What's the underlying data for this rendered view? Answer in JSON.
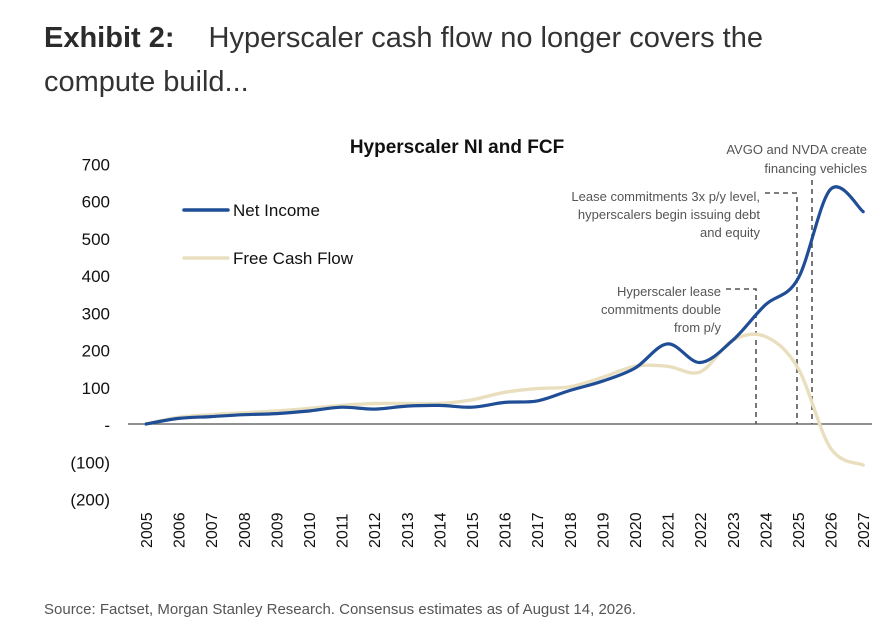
{
  "exhibit": {
    "label": "Exhibit 2:",
    "title": "Hyperscaler cash flow no longer covers the compute build..."
  },
  "source": "Source: Factset, Morgan Stanley Research. Consensus estimates as of August 14, 2026.",
  "colors": {
    "net_income": "#1f4e96",
    "free_cash_flow": "#e9dfbf",
    "axis": "#6d6d6d",
    "annotation": "#555555"
  },
  "chart_data": {
    "type": "line",
    "title": "Hyperscaler NI and FCF",
    "xlabel": "",
    "ylabel": "",
    "categories": [
      "2005",
      "2006",
      "2007",
      "2008",
      "2009",
      "2010",
      "2011",
      "2012",
      "2013",
      "2014",
      "2015",
      "2016",
      "2017",
      "2018",
      "2019",
      "2020",
      "2021",
      "2022",
      "2023",
      "2024",
      "2025",
      "2026",
      "2027"
    ],
    "ylim": [
      -200,
      700
    ],
    "yticks": [
      700,
      600,
      500,
      400,
      300,
      200,
      100,
      0,
      -100,
      -200
    ],
    "ytick_labels": [
      "700",
      "600",
      "500",
      "400",
      "300",
      "200",
      "100",
      "-",
      "(100)",
      "(200)"
    ],
    "legend_position": "top-left",
    "grid": false,
    "series": [
      {
        "name": "Net Income",
        "values": [
          0,
          15,
          20,
          25,
          28,
          35,
          45,
          40,
          48,
          50,
          45,
          58,
          62,
          90,
          115,
          150,
          215,
          165,
          225,
          320,
          390,
          630,
          570
        ]
      },
      {
        "name": "Free Cash Flow",
        "values": [
          0,
          18,
          25,
          30,
          35,
          42,
          50,
          55,
          55,
          55,
          65,
          85,
          95,
          100,
          125,
          155,
          155,
          140,
          225,
          235,
          150,
          -65,
          -110
        ]
      }
    ],
    "annotations": [
      {
        "text_lines": [
          "AVGO and NVDA create",
          "financing vehicles"
        ],
        "year": "2025.6"
      },
      {
        "text_lines": [
          "Lease commitments 3x p/y level,",
          "hyperscalers begin issuing debt",
          "and equity"
        ],
        "year": "2025.2"
      },
      {
        "text_lines": [
          "Hyperscaler lease",
          "commitments double",
          "from p/y"
        ],
        "year": "2024"
      }
    ]
  }
}
